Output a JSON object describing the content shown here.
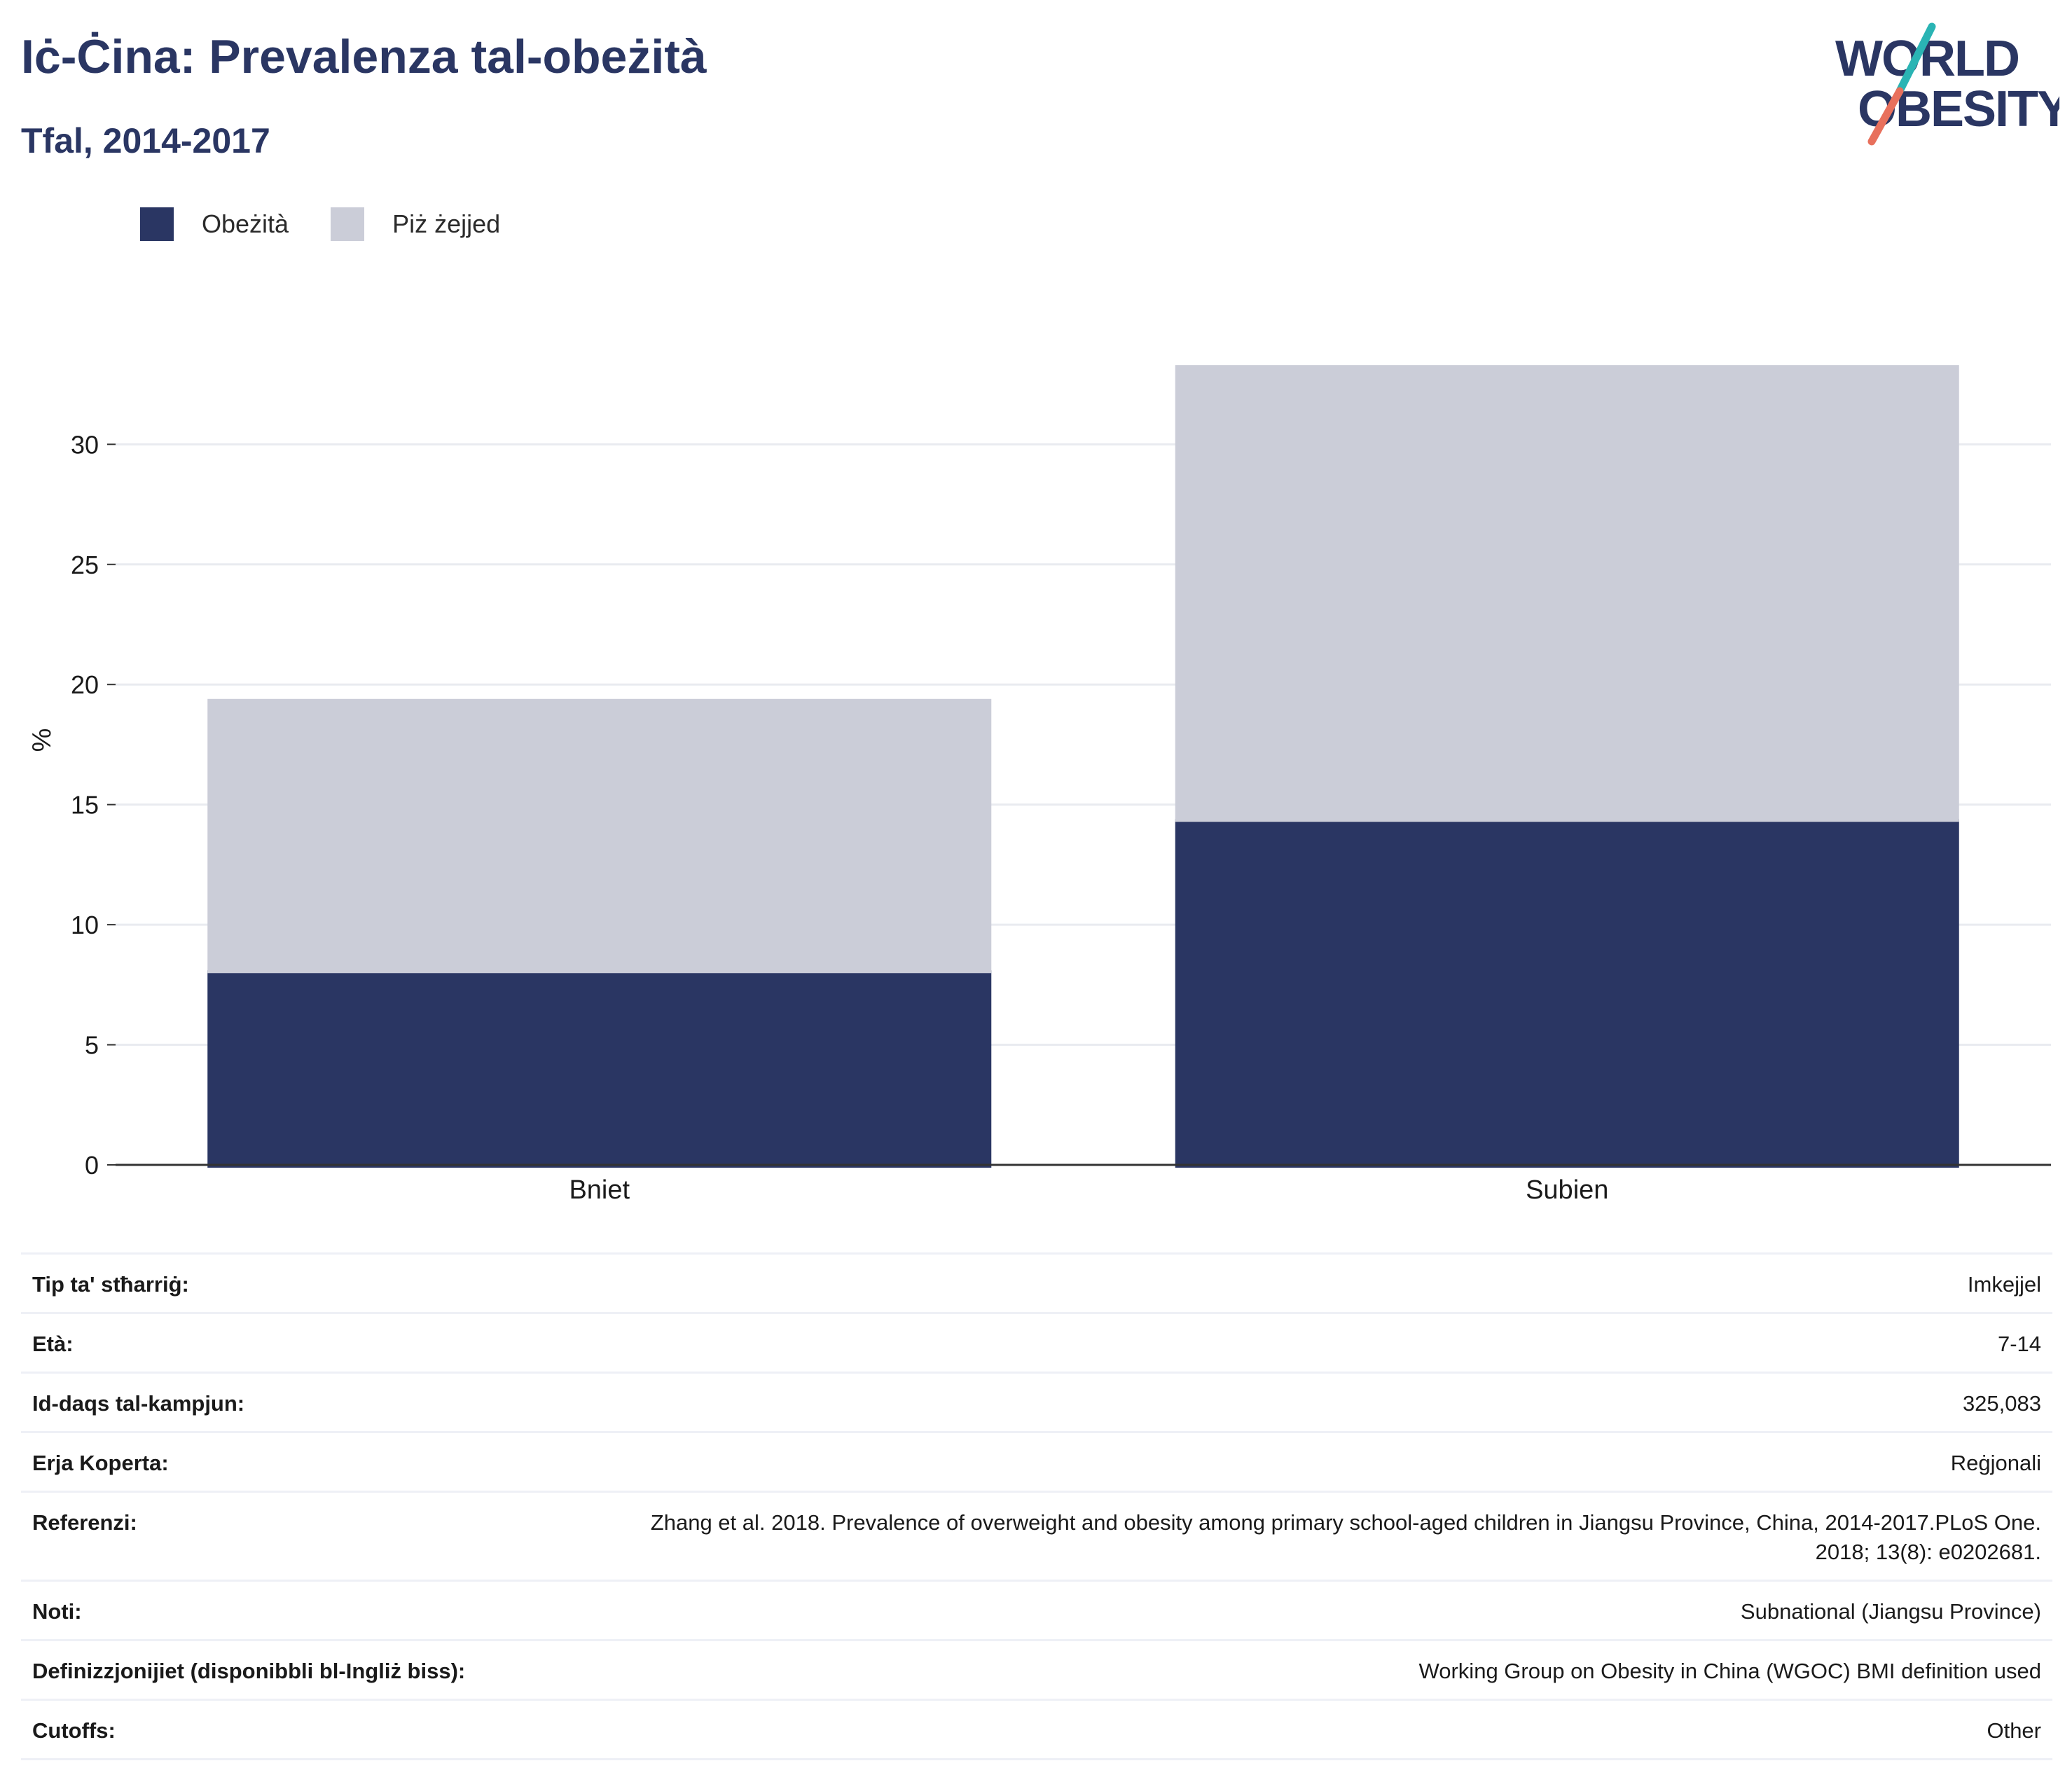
{
  "title": "Iċ-Ċina: Prevalenza tal-obeżità",
  "subtitle": "Tfal, 2014-2017",
  "logo": {
    "line1": "WORLD",
    "line2": "OBESITY",
    "colors": {
      "text": "#2a3663",
      "slash_top": "#2ab4b4",
      "slash_bottom": "#e8705c"
    }
  },
  "legend": [
    {
      "label": "Obeżità",
      "color": "#2a3663"
    },
    {
      "label": "Piż żejjed",
      "color": "#cbcdd8"
    }
  ],
  "chart_data": {
    "type": "bar",
    "stacked": true,
    "categories": [
      "Bniet",
      "Subien"
    ],
    "series": [
      {
        "name": "Obeżità",
        "values": [
          8.1,
          14.4
        ],
        "color": "#2a3663"
      },
      {
        "name": "Piż żejjed",
        "values": [
          11.3,
          18.9
        ],
        "color": "#cbcdd8"
      }
    ],
    "ylabel": "%",
    "ylim": [
      0,
      38
    ],
    "yticks": [
      0,
      5,
      10,
      15,
      20,
      25,
      30
    ],
    "grid": true,
    "legend_position": "top-left"
  },
  "info_table": [
    {
      "label": "Tip ta' stħarriġ:",
      "value": "Imkejjel"
    },
    {
      "label": "Età:",
      "value": "7-14"
    },
    {
      "label": "Id-daqs tal-kampjun:",
      "value": "325,083"
    },
    {
      "label": "Erja Koperta:",
      "value": "Reġjonali"
    },
    {
      "label": "Referenzi:",
      "value": "Zhang et al. 2018. Prevalence of overweight and obesity among primary school-aged children in Jiangsu Province, China, 2014-2017.PLoS One. 2018; 13(8): e0202681."
    },
    {
      "label": "Noti:",
      "value": "Subnational (Jiangsu Province)"
    },
    {
      "label": "Definizzjonijiet (disponibbli bl-Ingliż biss):",
      "value": "Working Group on Obesity in China (WGOC) BMI definition used"
    },
    {
      "label": "Cutoffs:",
      "value": "Other"
    }
  ]
}
